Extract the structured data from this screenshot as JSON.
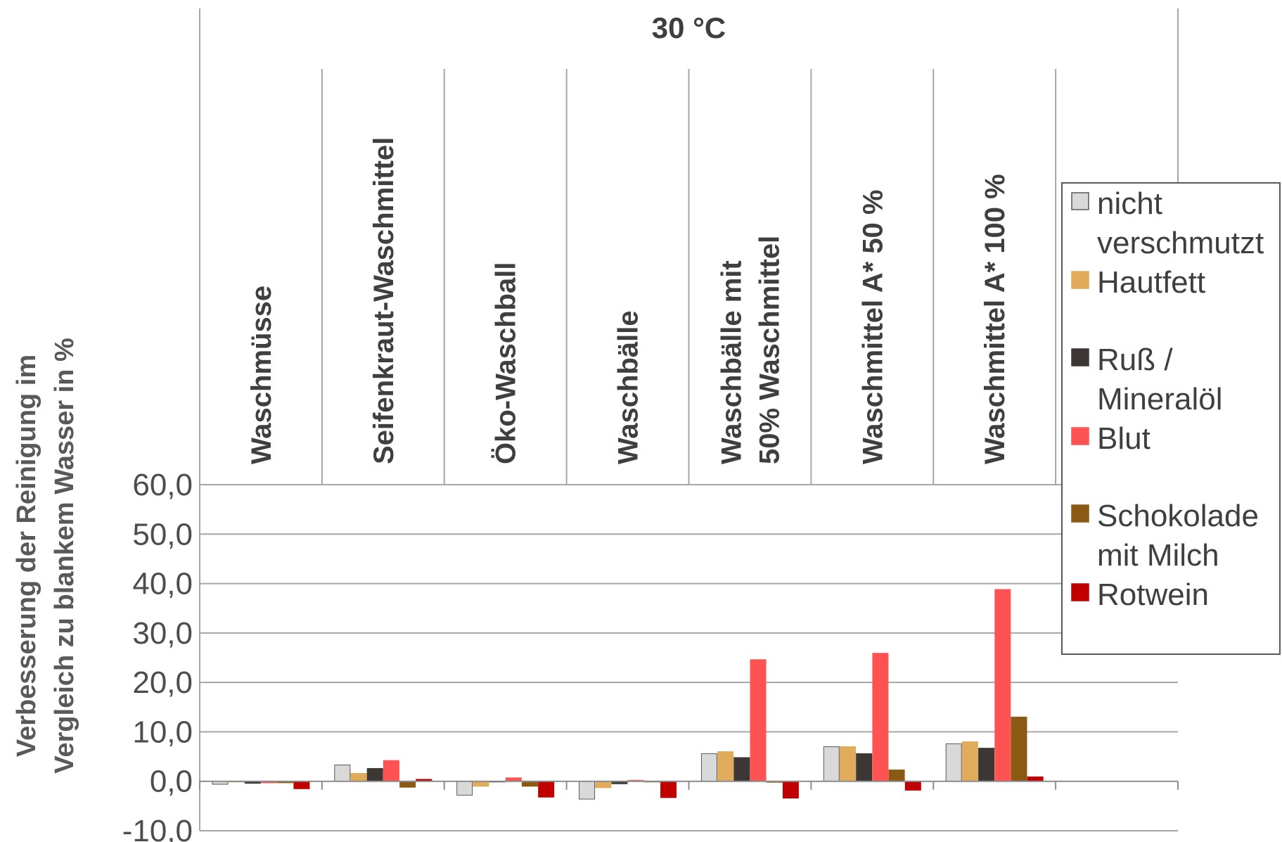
{
  "chart_data": {
    "type": "bar",
    "title": "30 °C",
    "ylabel": [
      "Verbesserung der Reinigung im",
      "Vergleich zu blankem Wasser in %"
    ],
    "xlabel": "",
    "ylim": [
      -10,
      60
    ],
    "yticks": [
      "-10,0",
      "0,0",
      "10,0",
      "20,0",
      "30,0",
      "40,0",
      "50,0",
      "60,0"
    ],
    "grid": true,
    "legend_position": "right",
    "categories": [
      [
        "Waschmüsse"
      ],
      [
        "Seifenkraut-Waschmittel"
      ],
      [
        "Öko-Waschball"
      ],
      [
        "Waschbälle"
      ],
      [
        "Waschbälle mit",
        "50% Waschmittel"
      ],
      [
        "Waschmittel A* 50 %"
      ],
      [
        "Waschmittel A* 100 %"
      ],
      [
        ""
      ]
    ],
    "series": [
      {
        "name": [
          "nicht",
          "verschmutzt"
        ],
        "color": "#d9d9d9",
        "stroke": "#595959",
        "values": [
          -0.6,
          3.3,
          -2.8,
          -3.6,
          5.6,
          7.0,
          7.6,
          null
        ]
      },
      {
        "name": [
          "Hautfett"
        ],
        "color": "#e0ac5c",
        "stroke": "#e0ac5c",
        "values": [
          0.0,
          1.6,
          -1.0,
          -1.3,
          6.0,
          7.0,
          8.0,
          null
        ]
      },
      {
        "name": [
          "Ruß /",
          "Mineralöl"
        ],
        "color": "#3c3734",
        "stroke": "#3c3734",
        "values": [
          -0.4,
          2.6,
          0.0,
          -0.5,
          4.8,
          5.6,
          6.7,
          null
        ]
      },
      {
        "name": [
          "Blut"
        ],
        "color": "#ff5252",
        "stroke": "#ff5252",
        "values": [
          -0.3,
          4.2,
          0.7,
          0.2,
          24.6,
          25.9,
          38.8,
          null
        ]
      },
      {
        "name": [
          "Schokolade",
          "mit Milch"
        ],
        "color": "#8b5a12",
        "stroke": "#8b5a12",
        "values": [
          -0.3,
          -1.2,
          -1.0,
          0.0,
          -0.2,
          2.3,
          13.0,
          null
        ]
      },
      {
        "name": [
          "Rotwein"
        ],
        "color": "#c00000",
        "stroke": "#c00000",
        "values": [
          -1.5,
          0.4,
          -3.2,
          -3.3,
          -3.4,
          -1.8,
          0.9,
          null
        ]
      }
    ]
  }
}
